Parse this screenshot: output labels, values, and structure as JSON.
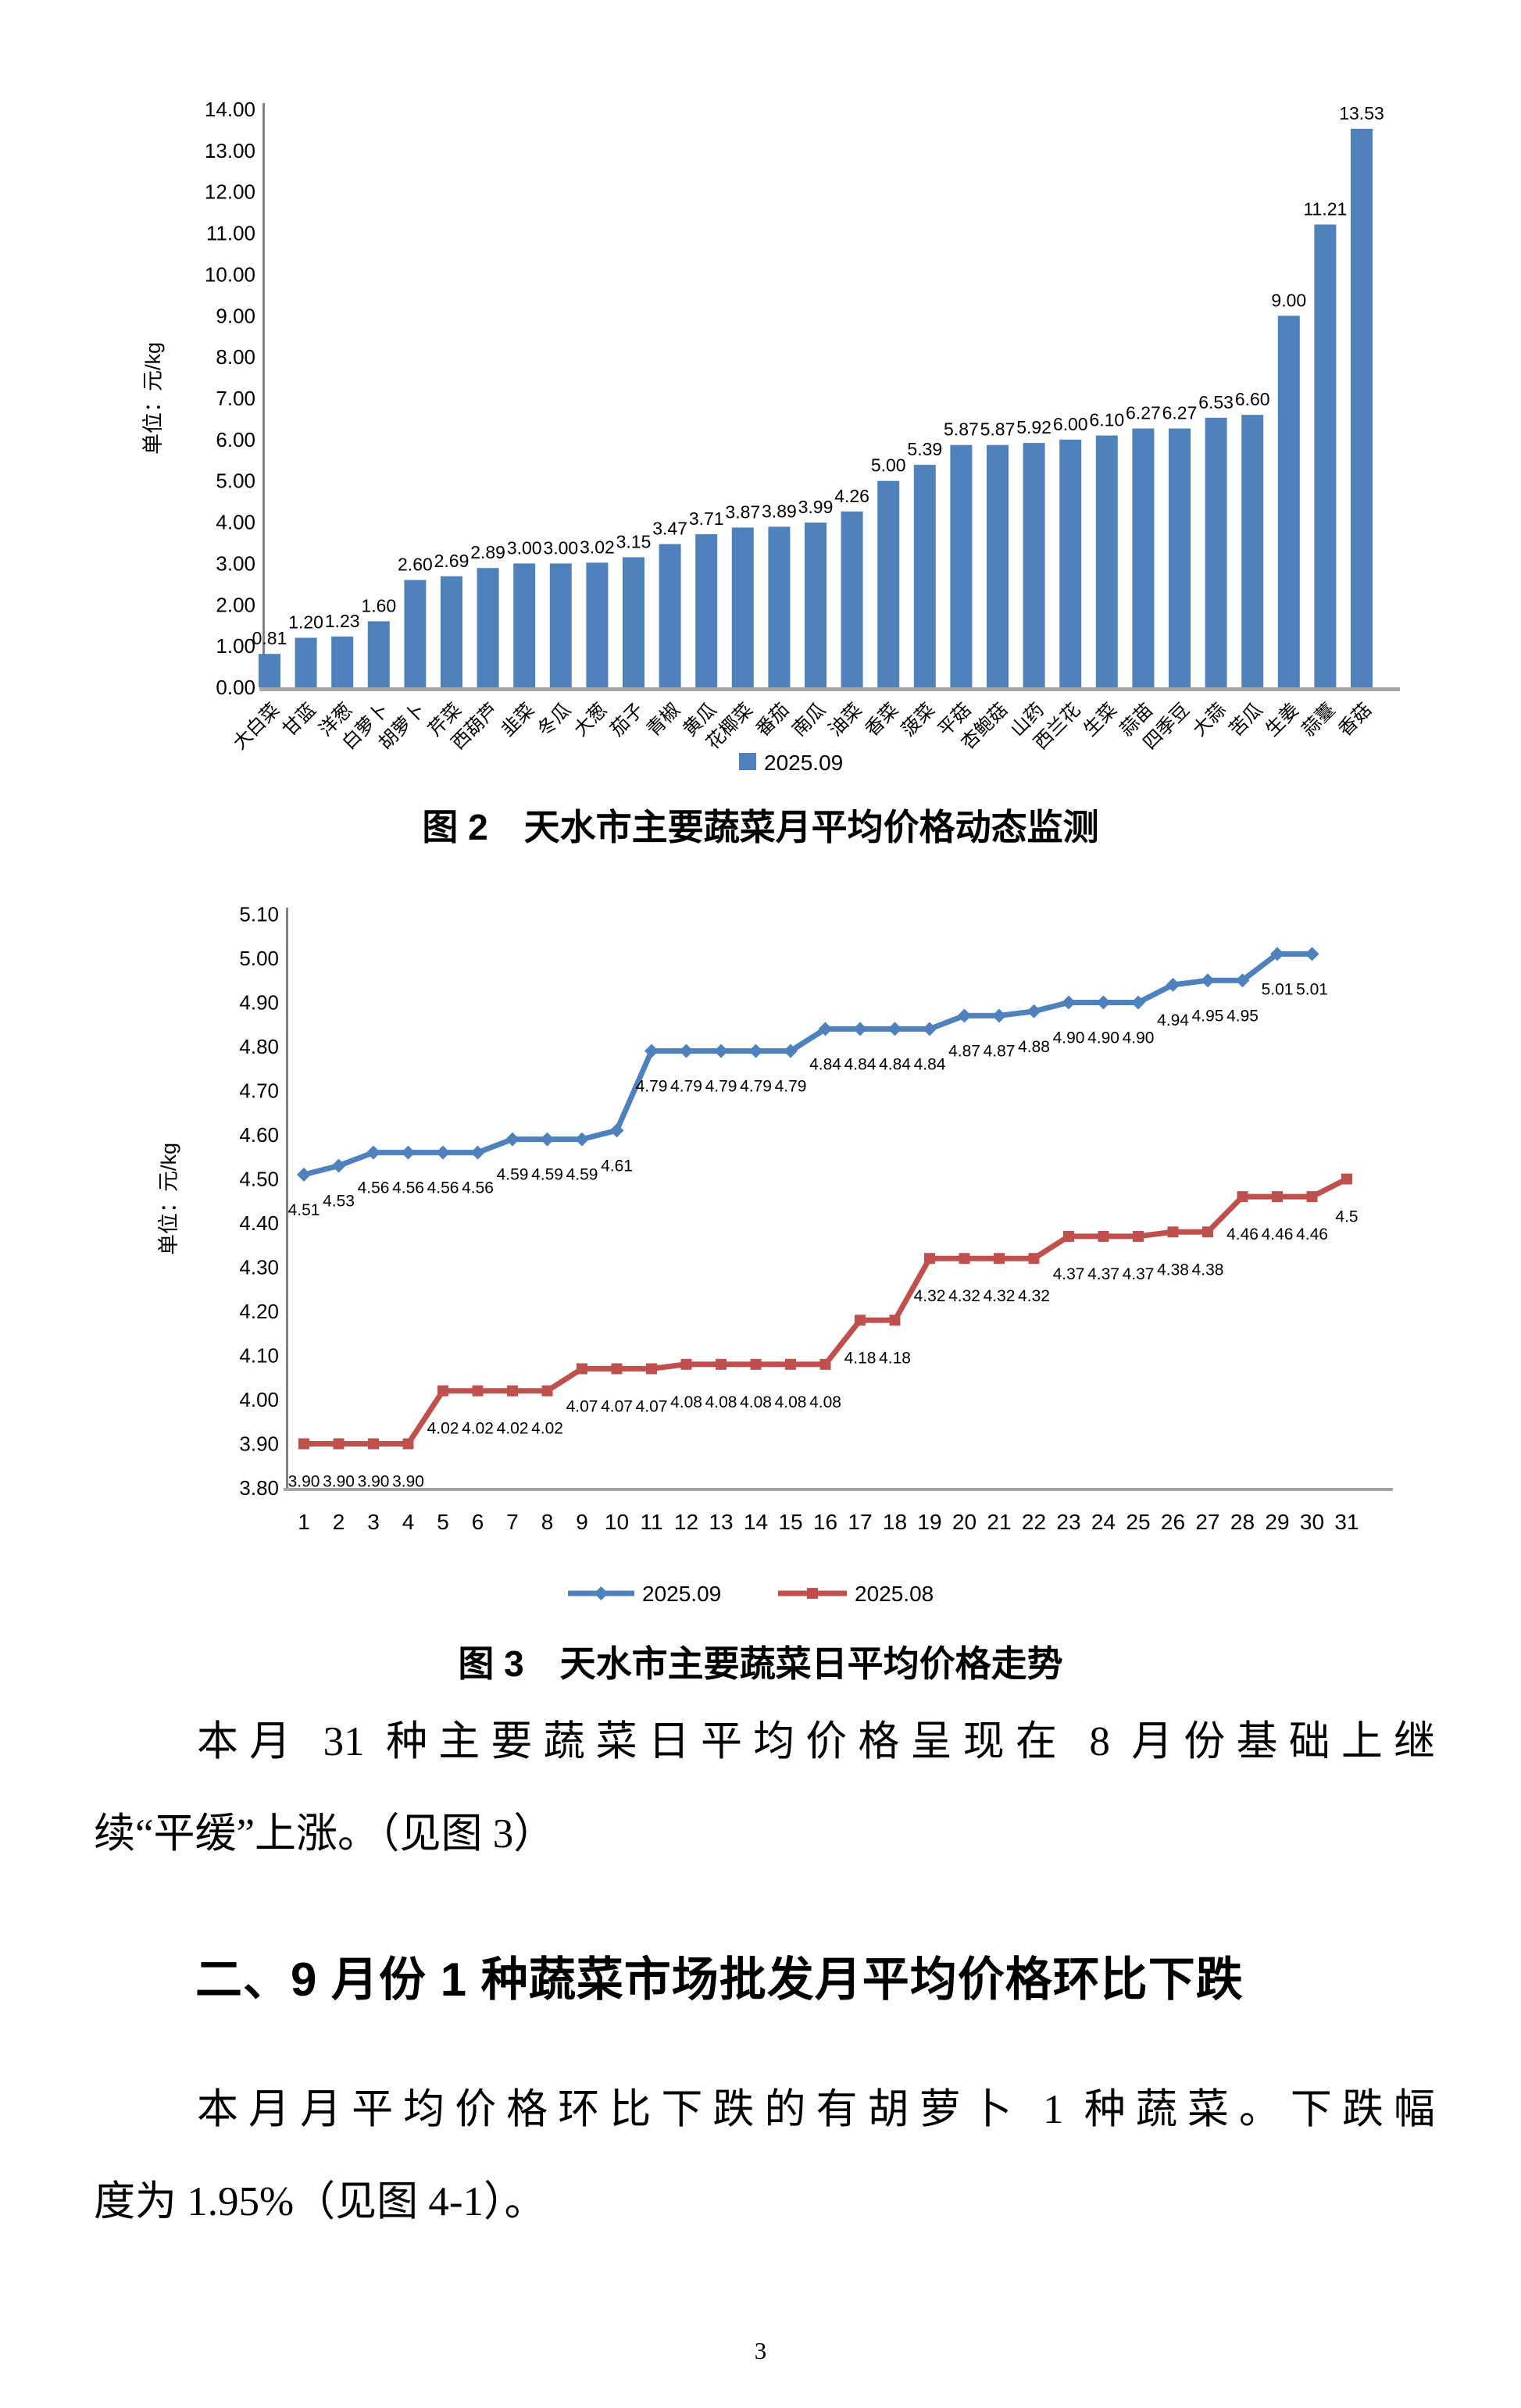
{
  "page": {
    "number": "3"
  },
  "chart_data": [
    {
      "type": "bar",
      "title": "图 2　天水市主要蔬菜月平均价格动态监测",
      "ylabel": "单位：元/kg",
      "ylim": [
        0,
        14
      ],
      "ytick_step": 1.0,
      "grid": false,
      "legend_position": "bottom",
      "legend": [
        {
          "label": "2025.09",
          "color": "#4F81BD"
        }
      ],
      "bar_color": "#4F81BD",
      "categories": [
        "大白菜",
        "甘蓝",
        "洋葱",
        "白萝卜",
        "胡萝卜",
        "芹菜",
        "西葫芦",
        "韭菜",
        "冬瓜",
        "大葱",
        "茄子",
        "青椒",
        "黄瓜",
        "花椰菜",
        "番茄",
        "南瓜",
        "油菜",
        "香菜",
        "菠菜",
        "平菇",
        "杏鲍菇",
        "山药",
        "西兰花",
        "生菜",
        "蒜苗",
        "四季豆",
        "大蒜",
        "苦瓜",
        "生姜",
        "蒜薹",
        "香菇"
      ],
      "values": [
        0.81,
        1.2,
        1.23,
        1.6,
        2.6,
        2.69,
        2.89,
        3.0,
        3.0,
        3.02,
        3.15,
        3.47,
        3.71,
        3.87,
        3.89,
        3.99,
        4.26,
        5.0,
        5.39,
        5.87,
        5.87,
        5.92,
        6.0,
        6.1,
        6.27,
        6.27,
        6.53,
        6.6,
        9.0,
        11.21,
        13.53
      ]
    },
    {
      "type": "line",
      "title": "图 3　天水市主要蔬菜日平均价格走势",
      "ylabel": "单位：元/kg",
      "ylim": [
        3.8,
        5.1
      ],
      "ytick_step": 0.1,
      "grid": false,
      "legend_position": "bottom",
      "x": [
        1,
        2,
        3,
        4,
        5,
        6,
        7,
        8,
        9,
        10,
        11,
        12,
        13,
        14,
        15,
        16,
        17,
        18,
        19,
        20,
        21,
        22,
        23,
        24,
        25,
        26,
        27,
        28,
        29,
        30,
        31
      ],
      "series": [
        {
          "name": "2025.09",
          "color": "#4F81BD",
          "marker": "diamond",
          "values": [
            4.51,
            4.53,
            4.56,
            4.56,
            4.56,
            4.56,
            4.59,
            4.59,
            4.59,
            4.61,
            4.79,
            4.79,
            4.79,
            4.79,
            4.79,
            4.84,
            4.84,
            4.84,
            4.84,
            4.87,
            4.87,
            4.88,
            4.9,
            4.9,
            4.9,
            4.94,
            4.95,
            4.95,
            5.01,
            5.01
          ],
          "labels": [
            "4.51",
            "4.53",
            "4.56",
            "4.56",
            "4.56",
            "4.56",
            "4.59",
            "4.59",
            "4.59",
            "4.61",
            "4.79",
            "4.79",
            "4.79",
            "4.79",
            "4.79",
            "4.84",
            "4.84",
            "4.84",
            "4.84",
            "4.87",
            "4.87",
            "4.88",
            "4.90",
            "4.90",
            "4.90",
            "4.94",
            "4.95",
            "4.95",
            "5.01",
            "5.01"
          ]
        },
        {
          "name": "2025.08",
          "color": "#C0504D",
          "marker": "square",
          "values": [
            3.9,
            3.9,
            3.9,
            3.9,
            4.02,
            4.02,
            4.02,
            4.02,
            4.07,
            4.07,
            4.07,
            4.08,
            4.08,
            4.08,
            4.08,
            4.08,
            4.18,
            4.18,
            4.32,
            4.32,
            4.32,
            4.32,
            4.37,
            4.37,
            4.37,
            4.38,
            4.38,
            4.46,
            4.46,
            4.46,
            4.5
          ],
          "labels": [
            "3.90",
            "3.90",
            "3.90",
            "3.90",
            "4.02",
            "4.02",
            "4.02",
            "4.02",
            "4.07",
            "4.07",
            "4.07",
            "4.08",
            "4.08",
            "4.08",
            "4.08",
            "4.08",
            "4.18",
            "4.18",
            "4.32",
            "4.32",
            "4.32",
            "4.32",
            "4.37",
            "4.37",
            "4.37",
            "4.38",
            "4.38",
            "4.46",
            "4.46",
            "4.46",
            "4.5"
          ]
        }
      ]
    }
  ],
  "body": {
    "paragraph1_lines": [
      "本月 31 种主要蔬菜日平均价格呈现在 8 月份基础上继",
      "续“平缓”上涨。（见图 3）"
    ],
    "section_heading": "二、9 月份 1 种蔬菜市场批发月平均价格环比下跌",
    "paragraph2_lines": [
      "本月月平均价格环比下跌的有胡萝卜 1 种蔬菜。下跌幅",
      "度为 1.95%（见图 4-1）。"
    ]
  }
}
